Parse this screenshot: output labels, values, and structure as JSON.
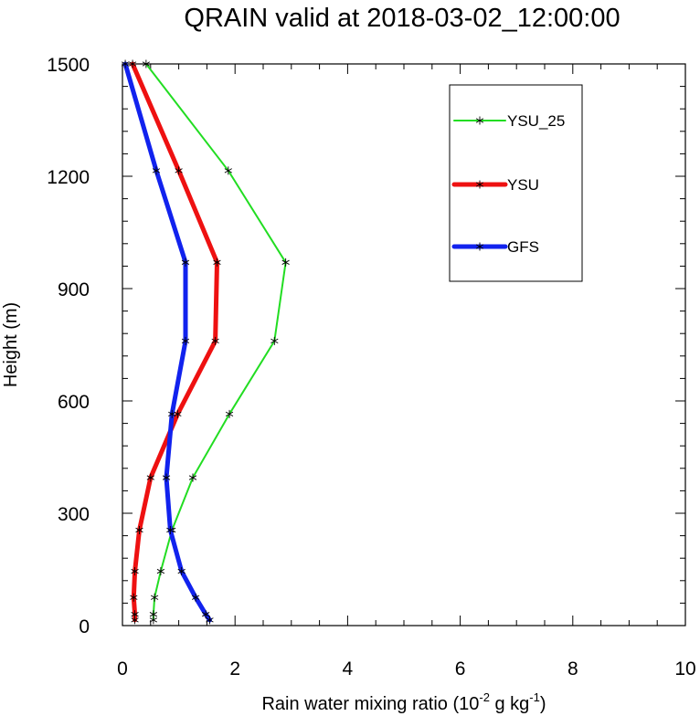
{
  "chart_data": {
    "type": "line",
    "title": "QRAIN valid at 2018-03-02_12:00:00",
    "xlabel": {
      "prefix": "Rain water mixing ratio (10",
      "sup1": "-2",
      "mid": " g kg",
      "sup2": "-1",
      "suffix": ")"
    },
    "ylabel": "Height (m)",
    "xlim": [
      0,
      10
    ],
    "ylim": [
      0,
      1500
    ],
    "xticks": [
      0,
      2,
      4,
      6,
      8,
      10
    ],
    "yticks": [
      0,
      300,
      600,
      900,
      1200,
      1500
    ],
    "x_minor_step": 0.5,
    "y_minor_step": 60,
    "grid": false,
    "legend_position": "top-right",
    "y": [
      15,
      30,
      75,
      145,
      255,
      395,
      565,
      760,
      970,
      1215,
      1500
    ],
    "series": [
      {
        "name": "YSU_25",
        "color": "#22dd22",
        "width": "thin",
        "values": [
          0.55,
          0.55,
          0.57,
          0.68,
          0.88,
          1.25,
          1.9,
          2.7,
          2.9,
          1.88,
          0.42
        ]
      },
      {
        "name": "YSU",
        "color": "#ee1111",
        "width": "thick",
        "values": [
          0.22,
          0.22,
          0.2,
          0.22,
          0.3,
          0.5,
          0.98,
          1.65,
          1.68,
          1.0,
          0.18
        ]
      },
      {
        "name": "GFS",
        "color": "#1122ee",
        "width": "thick",
        "values": [
          1.55,
          1.48,
          1.3,
          1.05,
          0.85,
          0.78,
          0.88,
          1.12,
          1.12,
          0.6,
          0.05
        ]
      }
    ]
  }
}
